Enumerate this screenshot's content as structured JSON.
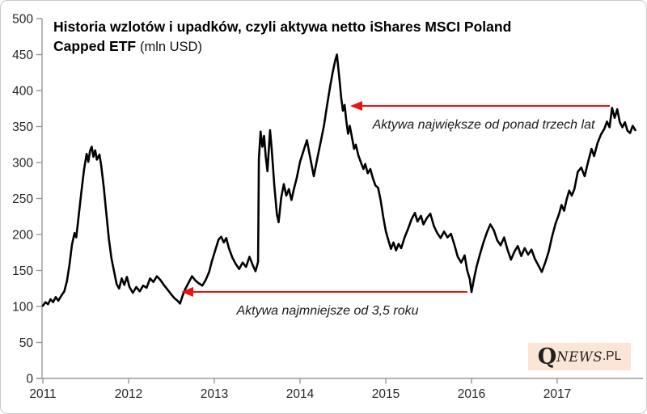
{
  "title": {
    "line1": "Historia wzlotów i upadków, czyli aktywa netto iShares MSCI Poland",
    "line2_bold": "Capped ETF",
    "line2_regular": "(mln USD)"
  },
  "annotations": [
    {
      "text": "Aktywa największe od ponad trzech lat",
      "arrow": {
        "x_from": 753,
        "x_to": 441,
        "y": 130
      }
    },
    {
      "text": "Aktywa najmniejsze od 3,5 roku",
      "arrow": {
        "x_from": 577,
        "x_to": 232,
        "y": 360
      }
    }
  ],
  "logo": {
    "q": "Q",
    "news": "NEWS",
    "tld": ".PL"
  },
  "colors": {
    "line": "#000000",
    "arrow": "#ee1111",
    "axis": "#9a9a9a",
    "tick_label": "#262626",
    "logo_bg": "#fbe5d6"
  },
  "chart_data": {
    "type": "line",
    "title": "Historia wzlotów i upadków, czyli aktywa netto iShares MSCI Poland Capped ETF (mln USD)",
    "xlabel": "",
    "ylabel": "",
    "ylim": [
      0,
      500
    ],
    "y_ticks": [
      0,
      50,
      100,
      150,
      200,
      250,
      300,
      350,
      400,
      450,
      500
    ],
    "x_ticks": [
      2011,
      2012,
      2013,
      2014,
      2015,
      2016,
      2017
    ],
    "x_range": [
      2011.0,
      2017.91
    ],
    "grid": false,
    "legend": "none",
    "series": [
      {
        "name": "Aktywa netto iShares MSCI Poland Capped ETF (mln USD)",
        "points": [
          [
            2011.0,
            101
          ],
          [
            2011.03,
            106
          ],
          [
            2011.06,
            103
          ],
          [
            2011.09,
            110
          ],
          [
            2011.12,
            106
          ],
          [
            2011.15,
            113
          ],
          [
            2011.18,
            108
          ],
          [
            2011.21,
            114
          ],
          [
            2011.25,
            121
          ],
          [
            2011.28,
            135
          ],
          [
            2011.31,
            158
          ],
          [
            2011.34,
            186
          ],
          [
            2011.37,
            202
          ],
          [
            2011.39,
            196
          ],
          [
            2011.42,
            228
          ],
          [
            2011.45,
            260
          ],
          [
            2011.48,
            290
          ],
          [
            2011.51,
            312
          ],
          [
            2011.53,
            301
          ],
          [
            2011.55,
            316
          ],
          [
            2011.57,
            322
          ],
          [
            2011.59,
            308
          ],
          [
            2011.61,
            317
          ],
          [
            2011.63,
            304
          ],
          [
            2011.66,
            311
          ],
          [
            2011.68,
            296
          ],
          [
            2011.71,
            266
          ],
          [
            2011.74,
            230
          ],
          [
            2011.77,
            194
          ],
          [
            2011.8,
            167
          ],
          [
            2011.83,
            149
          ],
          [
            2011.86,
            131
          ],
          [
            2011.89,
            125
          ],
          [
            2011.92,
            139
          ],
          [
            2011.95,
            130
          ],
          [
            2011.98,
            141
          ],
          [
            2012.01,
            127
          ],
          [
            2012.05,
            119
          ],
          [
            2012.09,
            127
          ],
          [
            2012.13,
            121
          ],
          [
            2012.17,
            129
          ],
          [
            2012.21,
            126
          ],
          [
            2012.25,
            139
          ],
          [
            2012.29,
            134
          ],
          [
            2012.33,
            142
          ],
          [
            2012.37,
            137
          ],
          [
            2012.41,
            130
          ],
          [
            2012.45,
            124
          ],
          [
            2012.49,
            118
          ],
          [
            2012.53,
            112
          ],
          [
            2012.57,
            108
          ],
          [
            2012.6,
            104
          ],
          [
            2012.63,
            115
          ],
          [
            2012.66,
            124
          ],
          [
            2012.7,
            133
          ],
          [
            2012.74,
            142
          ],
          [
            2012.78,
            136
          ],
          [
            2012.82,
            132
          ],
          [
            2012.86,
            129
          ],
          [
            2012.9,
            137
          ],
          [
            2012.94,
            148
          ],
          [
            2012.97,
            162
          ],
          [
            2013.01,
            178
          ],
          [
            2013.05,
            193
          ],
          [
            2013.08,
            197
          ],
          [
            2013.11,
            189
          ],
          [
            2013.14,
            195
          ],
          [
            2013.17,
            181
          ],
          [
            2013.21,
            168
          ],
          [
            2013.25,
            159
          ],
          [
            2013.29,
            152
          ],
          [
            2013.33,
            161
          ],
          [
            2013.37,
            155
          ],
          [
            2013.41,
            169
          ],
          [
            2013.45,
            157
          ],
          [
            2013.48,
            149
          ],
          [
            2013.51,
            162
          ],
          [
            2013.52,
            305
          ],
          [
            2013.54,
            343
          ],
          [
            2013.56,
            322
          ],
          [
            2013.58,
            337
          ],
          [
            2013.6,
            308
          ],
          [
            2013.62,
            288
          ],
          [
            2013.65,
            345
          ],
          [
            2013.67,
            318
          ],
          [
            2013.7,
            268
          ],
          [
            2013.73,
            228
          ],
          [
            2013.75,
            217
          ],
          [
            2013.78,
            251
          ],
          [
            2013.81,
            270
          ],
          [
            2013.84,
            254
          ],
          [
            2013.87,
            263
          ],
          [
            2013.9,
            248
          ],
          [
            2013.93,
            264
          ],
          [
            2013.96,
            278
          ],
          [
            2014.0,
            301
          ],
          [
            2014.04,
            316
          ],
          [
            2014.08,
            331
          ],
          [
            2014.12,
            306
          ],
          [
            2014.16,
            281
          ],
          [
            2014.2,
            305
          ],
          [
            2014.25,
            334
          ],
          [
            2014.28,
            352
          ],
          [
            2014.31,
            376
          ],
          [
            2014.35,
            405
          ],
          [
            2014.38,
            425
          ],
          [
            2014.41,
            442
          ],
          [
            2014.43,
            450
          ],
          [
            2014.46,
            415
          ],
          [
            2014.48,
            390
          ],
          [
            2014.5,
            372
          ],
          [
            2014.52,
            380
          ],
          [
            2014.54,
            358
          ],
          [
            2014.56,
            340
          ],
          [
            2014.58,
            351
          ],
          [
            2014.61,
            332
          ],
          [
            2014.63,
            319
          ],
          [
            2014.65,
            325
          ],
          [
            2014.68,
            310
          ],
          [
            2014.71,
            300
          ],
          [
            2014.74,
            291
          ],
          [
            2014.76,
            298
          ],
          [
            2014.79,
            285
          ],
          [
            2014.82,
            291
          ],
          [
            2014.85,
            278
          ],
          [
            2014.88,
            268
          ],
          [
            2014.91,
            265
          ],
          [
            2014.94,
            248
          ],
          [
            2014.97,
            225
          ],
          [
            2015.0,
            205
          ],
          [
            2015.03,
            192
          ],
          [
            2015.06,
            180
          ],
          [
            2015.09,
            189
          ],
          [
            2015.12,
            178
          ],
          [
            2015.15,
            187
          ],
          [
            2015.18,
            181
          ],
          [
            2015.22,
            196
          ],
          [
            2015.26,
            208
          ],
          [
            2015.3,
            221
          ],
          [
            2015.34,
            230
          ],
          [
            2015.37,
            218
          ],
          [
            2015.41,
            226
          ],
          [
            2015.44,
            214
          ],
          [
            2015.48,
            223
          ],
          [
            2015.52,
            229
          ],
          [
            2015.56,
            212
          ],
          [
            2015.6,
            202
          ],
          [
            2015.64,
            195
          ],
          [
            2015.68,
            204
          ],
          [
            2015.72,
            196
          ],
          [
            2015.76,
            201
          ],
          [
            2015.8,
            186
          ],
          [
            2015.84,
            169
          ],
          [
            2015.88,
            161
          ],
          [
            2015.92,
            171
          ],
          [
            2015.95,
            150
          ],
          [
            2015.98,
            138
          ],
          [
            2016.0,
            120
          ],
          [
            2016.03,
            139
          ],
          [
            2016.06,
            156
          ],
          [
            2016.1,
            173
          ],
          [
            2016.14,
            189
          ],
          [
            2016.18,
            203
          ],
          [
            2016.22,
            214
          ],
          [
            2016.26,
            206
          ],
          [
            2016.3,
            192
          ],
          [
            2016.34,
            185
          ],
          [
            2016.38,
            196
          ],
          [
            2016.42,
            179
          ],
          [
            2016.46,
            165
          ],
          [
            2016.5,
            176
          ],
          [
            2016.54,
            184
          ],
          [
            2016.58,
            170
          ],
          [
            2016.62,
            181
          ],
          [
            2016.66,
            172
          ],
          [
            2016.7,
            179
          ],
          [
            2016.74,
            166
          ],
          [
            2016.78,
            157
          ],
          [
            2016.82,
            148
          ],
          [
            2016.86,
            161
          ],
          [
            2016.9,
            176
          ],
          [
            2016.94,
            197
          ],
          [
            2016.98,
            215
          ],
          [
            2017.02,
            228
          ],
          [
            2017.05,
            241
          ],
          [
            2017.08,
            233
          ],
          [
            2017.11,
            249
          ],
          [
            2017.14,
            261
          ],
          [
            2017.17,
            254
          ],
          [
            2017.2,
            263
          ],
          [
            2017.24,
            287
          ],
          [
            2017.28,
            293
          ],
          [
            2017.32,
            281
          ],
          [
            2017.36,
            301
          ],
          [
            2017.4,
            319
          ],
          [
            2017.43,
            309
          ],
          [
            2017.47,
            327
          ],
          [
            2017.51,
            339
          ],
          [
            2017.55,
            347
          ],
          [
            2017.58,
            357
          ],
          [
            2017.61,
            349
          ],
          [
            2017.64,
            376
          ],
          [
            2017.67,
            362
          ],
          [
            2017.7,
            374
          ],
          [
            2017.73,
            356
          ],
          [
            2017.76,
            349
          ],
          [
            2017.79,
            356
          ],
          [
            2017.82,
            344
          ],
          [
            2017.85,
            341
          ],
          [
            2017.88,
            351
          ],
          [
            2017.91,
            345
          ]
        ]
      }
    ]
  }
}
